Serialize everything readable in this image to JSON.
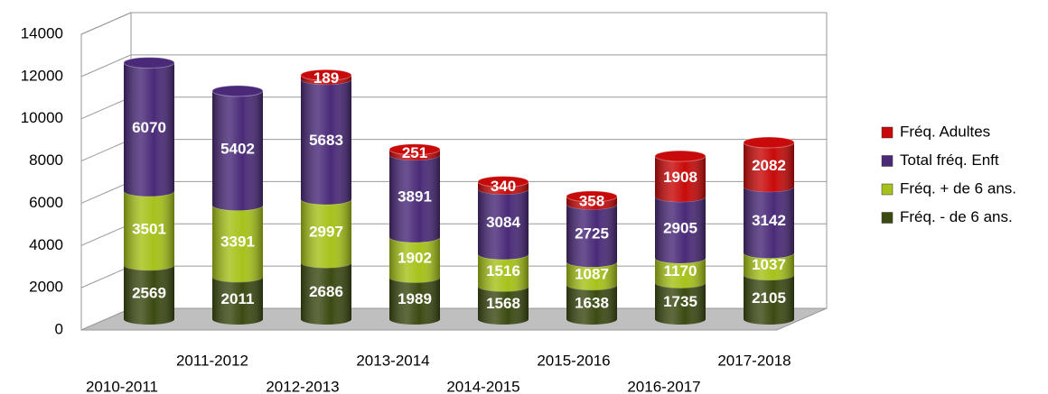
{
  "chart_data": {
    "type": "bar3d_stacked_cylinder",
    "categories": [
      "2010-2011",
      "2011-2012",
      "2012-2013",
      "2013-2014",
      "2014-2015",
      "2015-2016",
      "2016-2017",
      "2017-2018"
    ],
    "series": [
      {
        "name": "Fréq. - de 6 ans.",
        "color": "#3b4a12",
        "values": [
          2569,
          2011,
          2686,
          1989,
          1568,
          1638,
          1735,
          2105
        ]
      },
      {
        "name": "Fréq. + de 6 ans.",
        "color": "#a6c21a",
        "values": [
          3501,
          3391,
          2997,
          1902,
          1516,
          1087,
          1170,
          1037
        ]
      },
      {
        "name": "Total fréq. Enft",
        "color": "#4a2a78",
        "values": [
          6070,
          5402,
          5683,
          3891,
          3084,
          2725,
          2905,
          3142
        ]
      },
      {
        "name": "Fréq. Adultes",
        "color": "#c80a0a",
        "values": [
          null,
          null,
          189,
          251,
          340,
          358,
          1908,
          2082
        ]
      }
    ],
    "ylim": [
      0,
      14000
    ],
    "yticks": [
      0,
      2000,
      4000,
      6000,
      8000,
      10000,
      12000,
      14000
    ],
    "grid": true,
    "legend": "right"
  }
}
